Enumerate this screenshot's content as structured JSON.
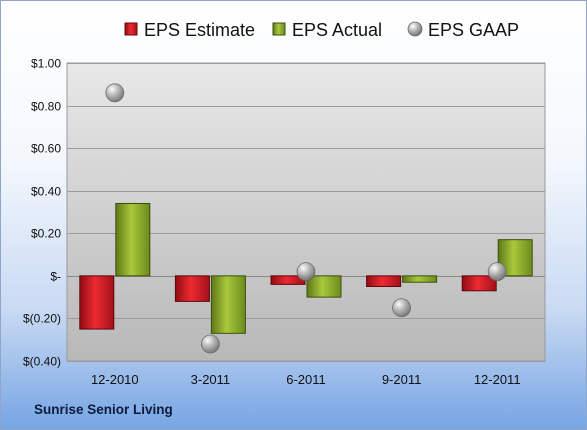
{
  "chart_data": {
    "type": "bar",
    "categories": [
      "12-2010",
      "3-2011",
      "6-2011",
      "9-2011",
      "12-2011"
    ],
    "series": [
      {
        "name": "EPS Estimate",
        "kind": "bar",
        "color": "#d7141c",
        "values": [
          -0.25,
          -0.12,
          -0.04,
          -0.05,
          -0.07
        ]
      },
      {
        "name": "EPS Actual",
        "kind": "bar",
        "color": "#93b52b",
        "values": [
          0.34,
          -0.27,
          -0.1,
          -0.03,
          0.17
        ]
      },
      {
        "name": "EPS GAAP",
        "kind": "marker",
        "color": "#9a9a9a",
        "values": [
          0.86,
          -0.32,
          0.02,
          -0.15,
          0.02
        ]
      }
    ],
    "ylim": [
      -0.4,
      1.0
    ],
    "yticks": [
      1.0,
      0.8,
      0.6,
      0.4,
      0.2,
      0.0,
      -0.2,
      -0.4
    ],
    "ytick_labels": [
      "$1.00",
      "$0.80",
      "$0.60",
      "$0.40",
      "$0.20",
      "$-",
      "$(0.20)",
      "$(0.40)"
    ],
    "grid": true,
    "legend": "top-center"
  },
  "footer": {
    "company_name": "Sunrise Senior Living"
  }
}
